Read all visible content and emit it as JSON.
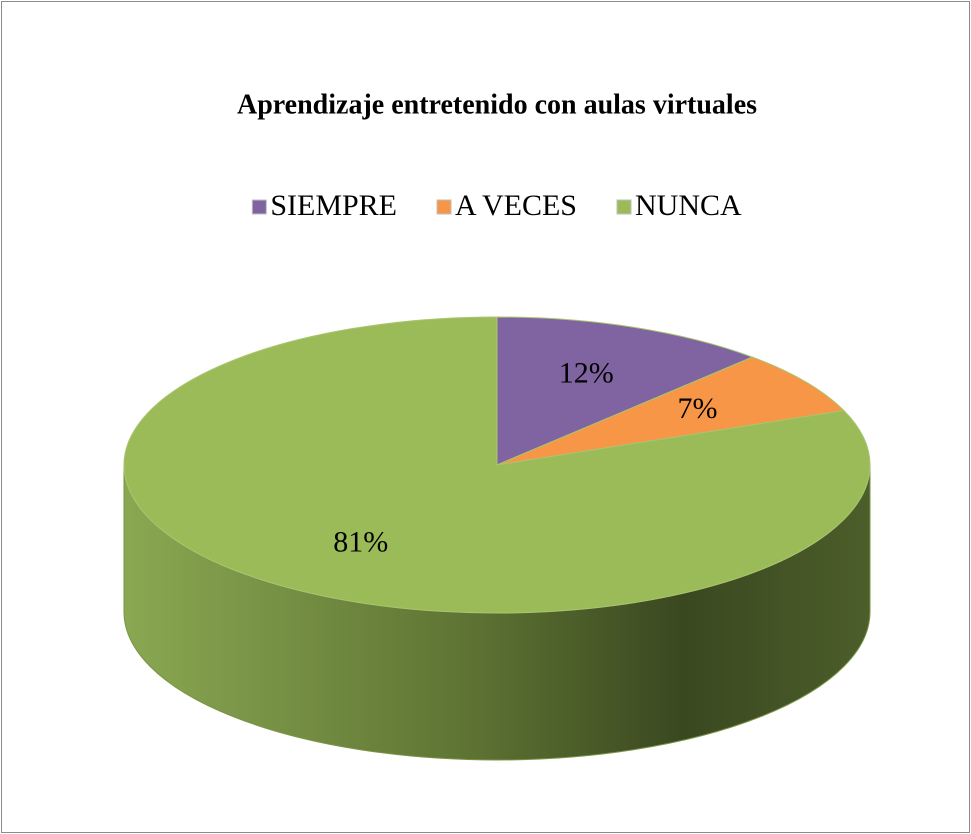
{
  "chart_data": {
    "type": "pie",
    "title": "Aprendizaje entretenido con aulas virtuales",
    "categories": [
      "SIEMPRE",
      "A VECES",
      "NUNCA"
    ],
    "values": [
      12,
      7,
      81
    ],
    "value_labels": [
      "12%",
      "7%",
      "81%"
    ],
    "colors": [
      "#8064a2",
      "#f79646",
      "#9bbb59"
    ],
    "legend": "top"
  }
}
